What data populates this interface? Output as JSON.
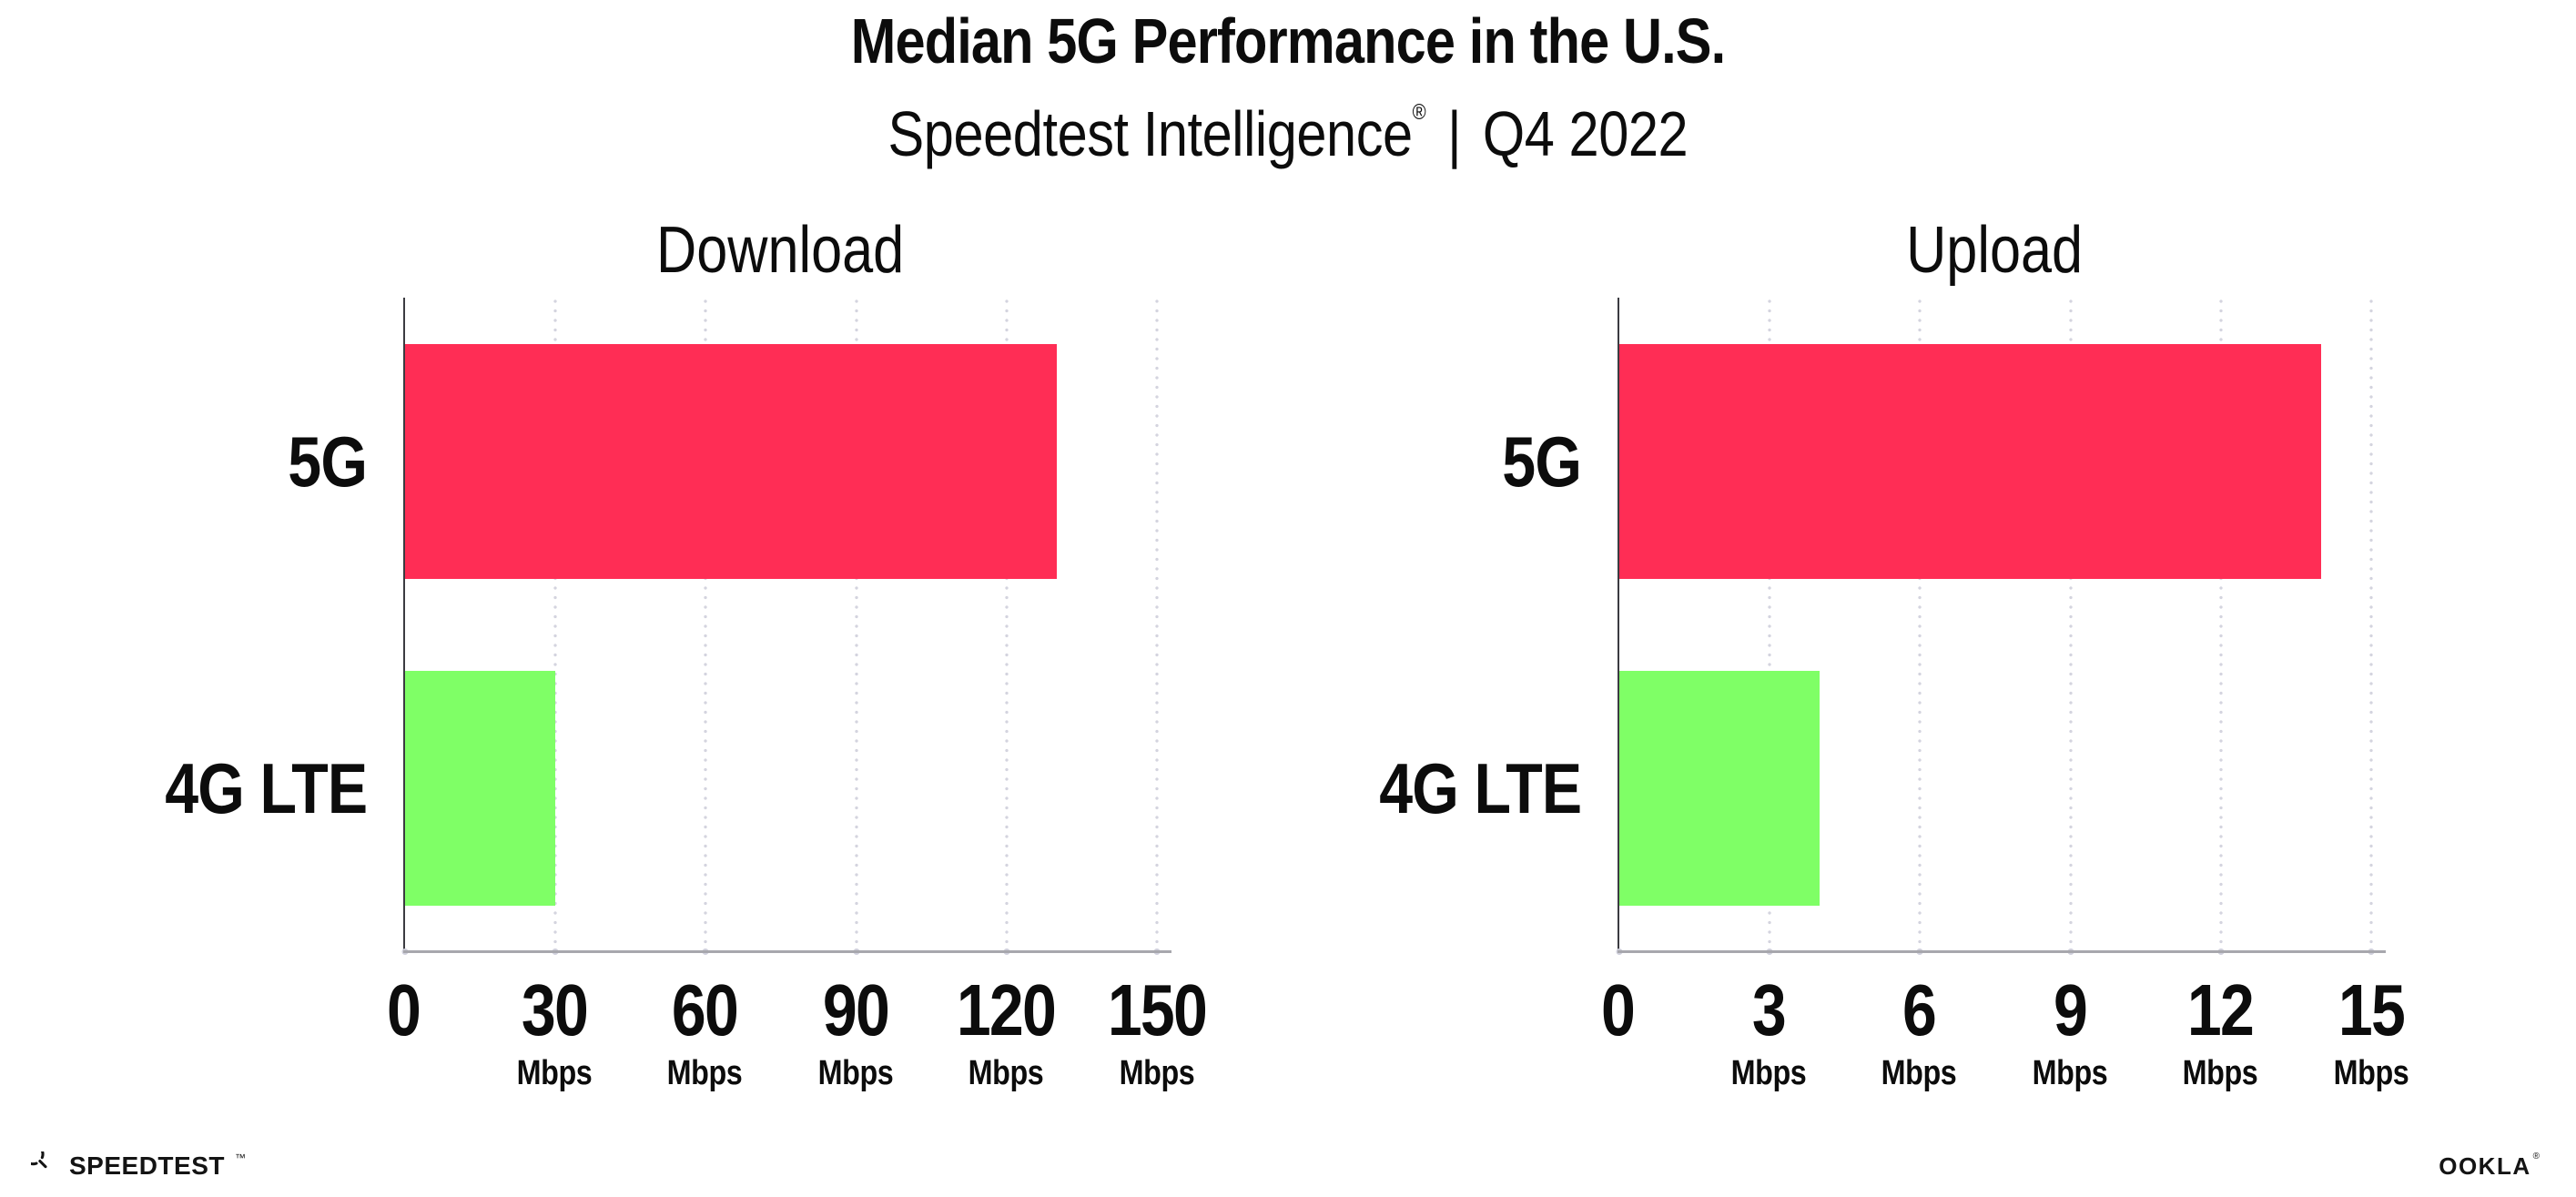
{
  "header": {
    "title": "Median 5G Performance in the U.S.",
    "subtitle_brand": "Speedtest Intelligence",
    "subtitle_reg": "®",
    "subtitle_separator": "|",
    "subtitle_period": "Q4 2022"
  },
  "chart_data": [
    {
      "type": "bar",
      "orientation": "horizontal",
      "title": "Download",
      "categories": [
        "5G",
        "4G LTE"
      ],
      "values": [
        130,
        30
      ],
      "unit": "Mbps",
      "xlim": [
        0,
        150
      ],
      "xticks": [
        0,
        30,
        60,
        90,
        120,
        150
      ],
      "bar_colors": [
        "#FF2D55",
        "#7FFF66"
      ],
      "grid": "dotted-vertical",
      "legend": "none"
    },
    {
      "type": "bar",
      "orientation": "horizontal",
      "title": "Upload",
      "categories": [
        "5G",
        "4G LTE"
      ],
      "values": [
        14,
        4
      ],
      "unit": "Mbps",
      "xlim": [
        0,
        15
      ],
      "xticks": [
        0,
        3,
        6,
        9,
        12,
        15
      ],
      "bar_colors": [
        "#FF2D55",
        "#7FFF66"
      ],
      "grid": "dotted-vertical",
      "legend": "none"
    }
  ],
  "footer": {
    "speedtest_wordmark": "SPEEDTEST",
    "speedtest_tm": "™",
    "ookla_wordmark": "OOKLA",
    "ookla_reg": "®"
  },
  "colors": {
    "bar_5g": "#FF2D55",
    "bar_4g_lte": "#7FFF66",
    "spine": "#3B3B41",
    "baseline": "#A7A7AD",
    "grid_dot": "#D4D4DF",
    "text": "#0C0C0C",
    "background": "#FFFFFF"
  }
}
